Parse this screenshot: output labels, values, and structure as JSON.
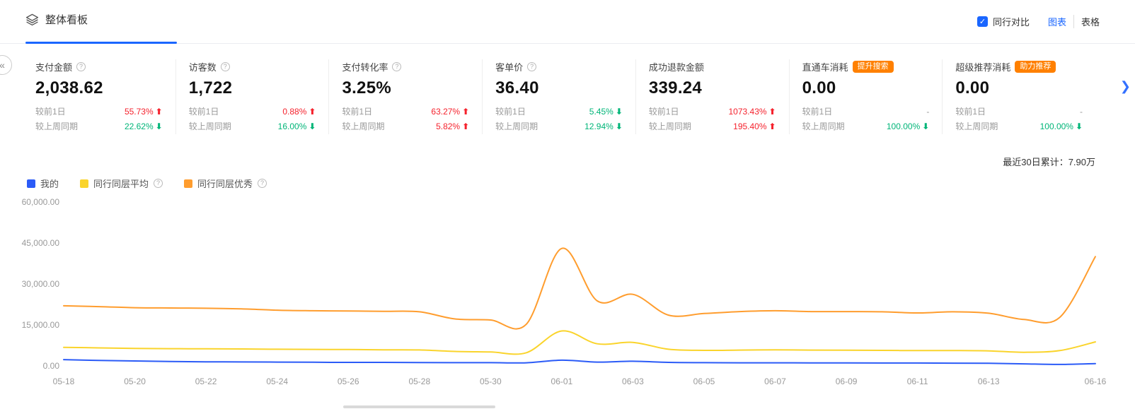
{
  "colors": {
    "accent": "#1a66ff",
    "up": "#f5222d",
    "down": "#00b578",
    "badge": "#ff8000",
    "axis": "#999999"
  },
  "icons": {
    "info": "?",
    "check": "✓",
    "up_arrow": "⬆",
    "down_arrow": "⬇",
    "next_arrow": "❯",
    "edge_collapse": "«"
  },
  "header": {
    "title": "整体看板",
    "peer_compare_label": "同行对比",
    "view_chart_label": "图表",
    "view_table_label": "表格"
  },
  "kpis": [
    {
      "title": "支付金额",
      "info": true,
      "value": "2,038.62",
      "rows": [
        {
          "label": "较前1日",
          "value": "55.73%",
          "dir": "up"
        },
        {
          "label": "较上周同期",
          "value": "22.62%",
          "dir": "down"
        }
      ]
    },
    {
      "title": "访客数",
      "info": true,
      "value": "1,722",
      "rows": [
        {
          "label": "较前1日",
          "value": "0.88%",
          "dir": "up"
        },
        {
          "label": "较上周同期",
          "value": "16.00%",
          "dir": "down"
        }
      ]
    },
    {
      "title": "支付转化率",
      "info": true,
      "value": "3.25%",
      "rows": [
        {
          "label": "较前1日",
          "value": "63.27%",
          "dir": "up"
        },
        {
          "label": "较上周同期",
          "value": "5.82%",
          "dir": "up"
        }
      ]
    },
    {
      "title": "客单价",
      "info": true,
      "value": "36.40",
      "rows": [
        {
          "label": "较前1日",
          "value": "5.45%",
          "dir": "down"
        },
        {
          "label": "较上周同期",
          "value": "12.94%",
          "dir": "down"
        }
      ]
    },
    {
      "title": "成功退款金额",
      "info": false,
      "value": "339.24",
      "rows": [
        {
          "label": "较前1日",
          "value": "1073.43%",
          "dir": "up"
        },
        {
          "label": "较上周同期",
          "value": "195.40%",
          "dir": "up"
        }
      ]
    },
    {
      "title": "直通车消耗",
      "info": false,
      "badge": "提升搜索",
      "value": "0.00",
      "rows": [
        {
          "label": "较前1日",
          "value": "-",
          "dir": "none"
        },
        {
          "label": "较上周同期",
          "value": "100.00%",
          "dir": "down"
        }
      ]
    },
    {
      "title": "超级推荐消耗",
      "info": false,
      "badge": "助力推荐",
      "value": "0.00",
      "rows": [
        {
          "label": "较前1日",
          "value": "-",
          "dir": "none"
        },
        {
          "label": "较上周同期",
          "value": "100.00%",
          "dir": "down"
        }
      ]
    }
  ],
  "summary": {
    "text": "最近30日累计：7.90万"
  },
  "chart_data": {
    "type": "line",
    "title": "",
    "xlabel": "",
    "ylabel": "",
    "ylim": [
      0,
      60000
    ],
    "grid": false,
    "legend_position": "top-left",
    "x": [
      "05-18",
      "05-19",
      "05-20",
      "05-21",
      "05-22",
      "05-23",
      "05-24",
      "05-25",
      "05-26",
      "05-27",
      "05-28",
      "05-29",
      "05-30",
      "05-31",
      "06-01",
      "06-02",
      "06-03",
      "06-04",
      "06-05",
      "06-06",
      "06-07",
      "06-08",
      "06-09",
      "06-10",
      "06-11",
      "06-12",
      "06-13",
      "06-14",
      "06-15",
      "06-16"
    ],
    "x_tick_labels": [
      "05-18",
      "05-20",
      "05-22",
      "05-24",
      "05-26",
      "05-28",
      "05-30",
      "06-01",
      "06-03",
      "06-05",
      "06-07",
      "06-09",
      "06-11",
      "06-13",
      "06-16"
    ],
    "y_ticks": [
      {
        "value": 0,
        "label": "0.00"
      },
      {
        "value": 15000,
        "label": "15,000.00"
      },
      {
        "value": 30000,
        "label": "30,000.00"
      },
      {
        "value": 45000,
        "label": "45,000.00"
      },
      {
        "value": 60000,
        "label": "60,000.00"
      }
    ],
    "series": [
      {
        "name": "我的",
        "color": "#2b5bf7",
        "info": false,
        "values": [
          2300,
          2000,
          1800,
          1600,
          1500,
          1450,
          1400,
          1350,
          1300,
          1300,
          1250,
          1200,
          1200,
          1150,
          2100,
          1400,
          1700,
          1300,
          1200,
          1150,
          1150,
          1100,
          1100,
          1050,
          1050,
          1000,
          950,
          750,
          550,
          850
        ]
      },
      {
        "name": "同行同层平均",
        "color": "#fad42c",
        "info": true,
        "values": [
          6800,
          6600,
          6400,
          6300,
          6250,
          6200,
          6100,
          6050,
          6000,
          5900,
          5850,
          5300,
          5100,
          4800,
          12800,
          8100,
          8600,
          6100,
          5700,
          5800,
          5900,
          5800,
          5750,
          5700,
          5600,
          5650,
          5500,
          5000,
          5600,
          8800
        ]
      },
      {
        "name": "同行同层优秀",
        "color": "#ff9d2e",
        "info": true,
        "values": [
          22000,
          21700,
          21300,
          21200,
          21100,
          20900,
          20400,
          20200,
          20100,
          20000,
          19800,
          17200,
          16800,
          15200,
          43000,
          23800,
          26200,
          18600,
          19200,
          19900,
          20200,
          19900,
          19900,
          19800,
          19400,
          19800,
          19300,
          17000,
          17800,
          40000
        ]
      }
    ]
  }
}
